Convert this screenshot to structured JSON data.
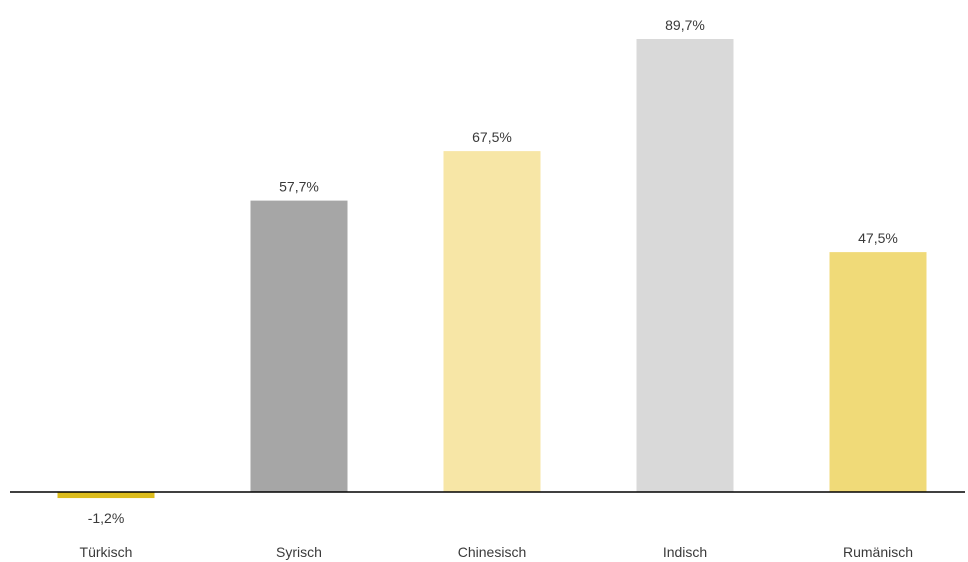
{
  "chart_data": {
    "type": "bar",
    "categories": [
      "Türkisch",
      "Syrisch",
      "Chinesisch",
      "Indisch",
      "Rumänisch"
    ],
    "values": [
      -1.2,
      57.7,
      67.5,
      89.7,
      47.5
    ],
    "value_labels": [
      "-1,2%",
      "57,7%",
      "67,5%",
      "89,7%",
      "47,5%"
    ],
    "colors": [
      "#dcbc1c",
      "#a6a6a6",
      "#f7e6a6",
      "#d9d9d9",
      "#f0da78"
    ],
    "title": "",
    "xlabel": "",
    "ylabel": "",
    "ylim": [
      -1.2,
      89.7
    ],
    "grid": false,
    "legend": "none"
  }
}
